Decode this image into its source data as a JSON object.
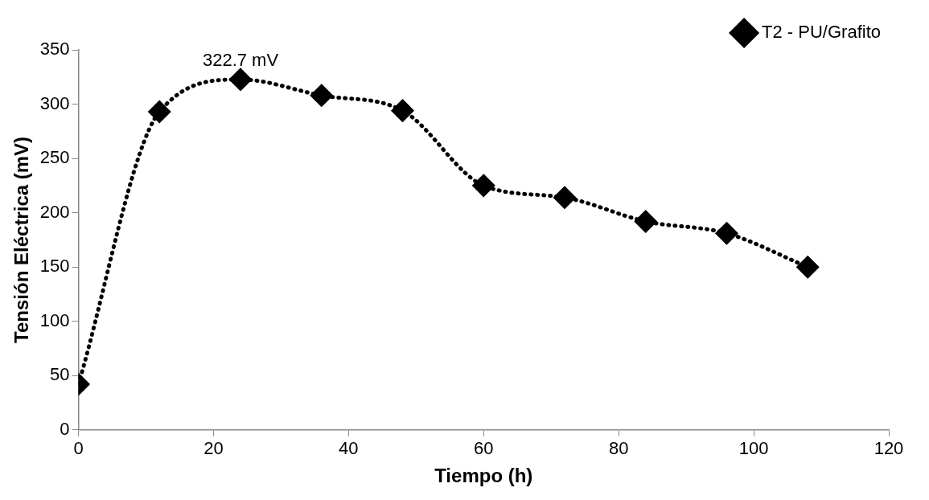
{
  "chart_data": {
    "type": "line",
    "xlabel": "Tiempo (h)",
    "ylabel": "Tensión Eléctrica (mV)",
    "x": [
      0,
      12,
      24,
      36,
      48,
      60,
      72,
      84,
      96,
      108
    ],
    "series": [
      {
        "name": "T2 - PU/Grafito",
        "color": "#000000",
        "values": [
          42,
          293,
          322.7,
          308,
          294,
          225,
          214,
          192,
          181,
          150
        ]
      }
    ],
    "xlim": [
      0,
      120
    ],
    "xticks": [
      0,
      20,
      40,
      60,
      80,
      100,
      120
    ],
    "ylim": [
      0,
      350
    ],
    "yticks": [
      0,
      50,
      100,
      150,
      200,
      250,
      300,
      350
    ],
    "annotations": [
      {
        "text": "322.7 mV",
        "x": 24,
        "y": 322.7
      }
    ],
    "grid": false,
    "legend": "top right",
    "marker": "diamond",
    "line_style": "dotted"
  }
}
